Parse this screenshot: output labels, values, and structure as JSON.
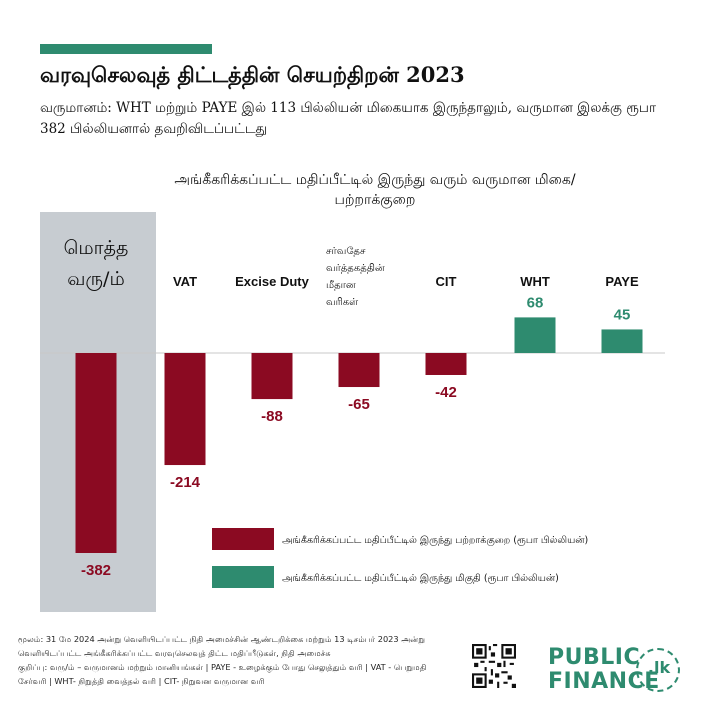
{
  "header": {
    "title": "வரவுசெலவுத் திட்டத்தின் செயற்திறன் 2023",
    "subtitle": "வருமானம்: WHT மற்றும் PAYE இல் 113 பில்லியன் மிகையாக இருந்தாலும், வருமான இலக்கு ரூபா 382 பில்லியனால் தவறிவிடப்பட்டது"
  },
  "colors": {
    "shortfall": "#8b0a22",
    "surplus": "#2e8b6f",
    "total_band": "#c7ccd1"
  },
  "chart_data": {
    "type": "bar",
    "title": "அங்கீகரிக்கப்பட்ட மதிப்பீட்டில் இருந்து வரும் வருமான மிகை/பற்றாக்குறை",
    "categories": [
      "மொத்த வரு/ம்",
      "VAT",
      "Excise Duty",
      "சர்வதேச வர்த்தகத்தின் மீதான வரிகள்",
      "CIT",
      "WHT",
      "PAYE"
    ],
    "values": [
      -382,
      -214,
      -88,
      -65,
      -42,
      68,
      45
    ],
    "value_labels": [
      "-382",
      "-214",
      "-88",
      "-65",
      "-42",
      "68",
      "45"
    ],
    "legend": [
      {
        "label": "அங்கீகரிக்கப்பட்ட மதிப்பீட்டில் இருந்து பற்றாக்குறை (ரூபா பில்லியன்)",
        "color": "#8b0a22"
      },
      {
        "label": "அங்கீகரிக்கப்பட்ட மதிப்பீட்டில் இருந்து மிகுதி (ரூபா பில்லியன்)",
        "color": "#2e8b6f"
      }
    ],
    "legend_position": "bottom-right",
    "grid": false
  },
  "footer": {
    "source": "மூலம்: 31 மே 2024 அன்று வெளியிடப்பட்ட நிதி அமைச்சின் ஆண்டறிக்கை மற்றும் 13 டிசம்பர் 2023 அன்று வெளியிடப்பட்ட அங்கீகரிக்கப்பட்ட வரவுசெலவுத் திட்ட மதிப்பீடுகள், நிதி அமைச்சு",
    "note": "குறிப்பு: வரு/ம் – வருமானம் மற்றும் மானியங்கள் | PAYE - உழைக்கும் போது செலுத்தும் வரி | VAT - பெறுமதி சேர்வரி | WHT- நிறுத்தி வைத்தல் வரி | CIT- நிறுவன வருமான வரி"
  },
  "brand": {
    "line1": "PUBLIC",
    "line2": "FINANCE",
    "suffix": ".lk"
  }
}
